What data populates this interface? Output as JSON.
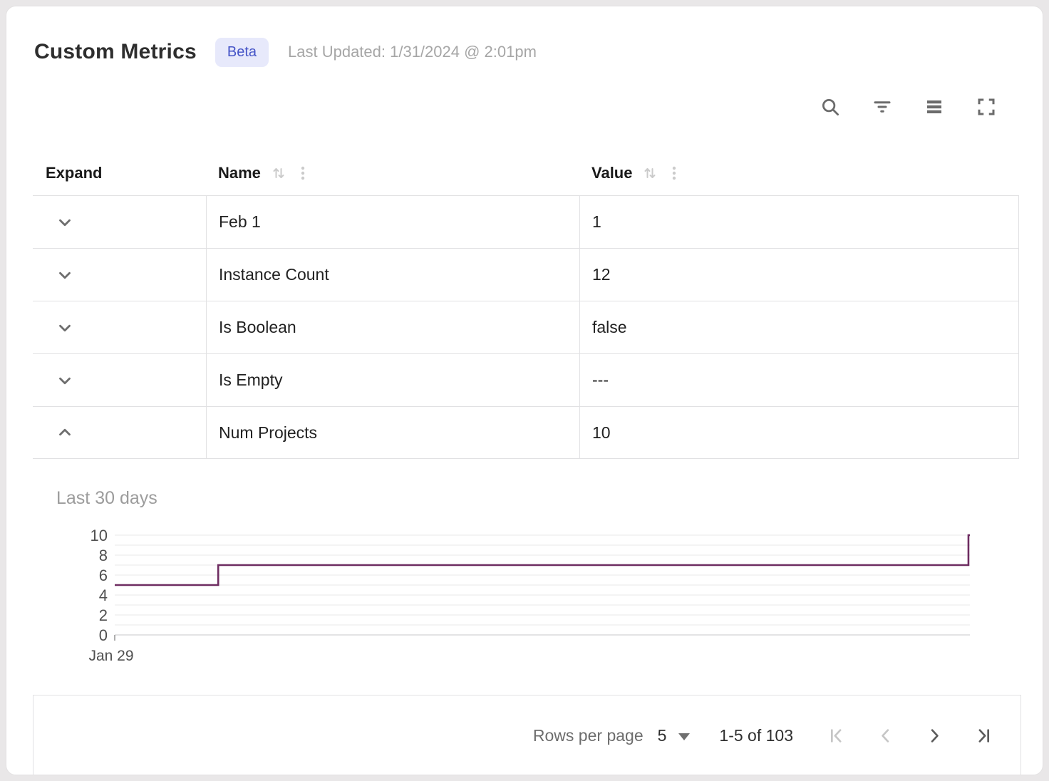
{
  "header": {
    "title": "Custom Metrics",
    "badge": "Beta",
    "last_updated": "Last Updated: 1/31/2024 @ 2:01pm"
  },
  "toolbar": {
    "icons": [
      "search-icon",
      "filter-icon",
      "density-icon",
      "fullscreen-icon"
    ]
  },
  "table": {
    "columns": [
      {
        "label": "Expand",
        "sortable": false
      },
      {
        "label": "Name",
        "sortable": true
      },
      {
        "label": "Value",
        "sortable": true
      }
    ],
    "rows": [
      {
        "name": "Feb 1",
        "value": "1",
        "expanded": false
      },
      {
        "name": "Instance Count",
        "value": "12",
        "expanded": false
      },
      {
        "name": "Is Boolean",
        "value": "false",
        "expanded": false
      },
      {
        "name": "Is Empty",
        "value": "---",
        "expanded": false
      },
      {
        "name": "Num Projects",
        "value": "10",
        "expanded": true
      }
    ]
  },
  "detail": {
    "label": "Last 30 days"
  },
  "chart_data": {
    "type": "line",
    "step": true,
    "title": "Last 30 days",
    "xlabel": "",
    "ylabel": "",
    "ylim": [
      0,
      10
    ],
    "yticks": [
      0,
      2,
      4,
      6,
      8,
      10
    ],
    "grid_interval": 1,
    "legend": "none",
    "xticks": [
      {
        "pos": 0,
        "label": "Jan 29"
      }
    ],
    "series": [
      {
        "name": "Num Projects",
        "color": "#6e2c61",
        "points": [
          [
            0,
            5
          ],
          [
            0.121,
            5
          ],
          [
            0.121,
            7
          ],
          [
            0.9983,
            7
          ],
          [
            0.9983,
            10
          ],
          [
            1,
            10
          ]
        ]
      }
    ]
  },
  "pagination": {
    "rows_per_page_label": "Rows per page",
    "rows_per_page_value": "5",
    "range_label": "1-5 of 103",
    "first_disabled": true,
    "prev_disabled": true,
    "next_disabled": false,
    "last_disabled": false
  },
  "colors": {
    "accent_line": "#6e2c61",
    "badge_bg": "#e7e9fb",
    "badge_text": "#4554c7",
    "border": "#e1e1e3",
    "grid_line": "#f0f0f1",
    "icon_gray": "#6b6b6b",
    "muted_text": "#a6a6a6"
  }
}
